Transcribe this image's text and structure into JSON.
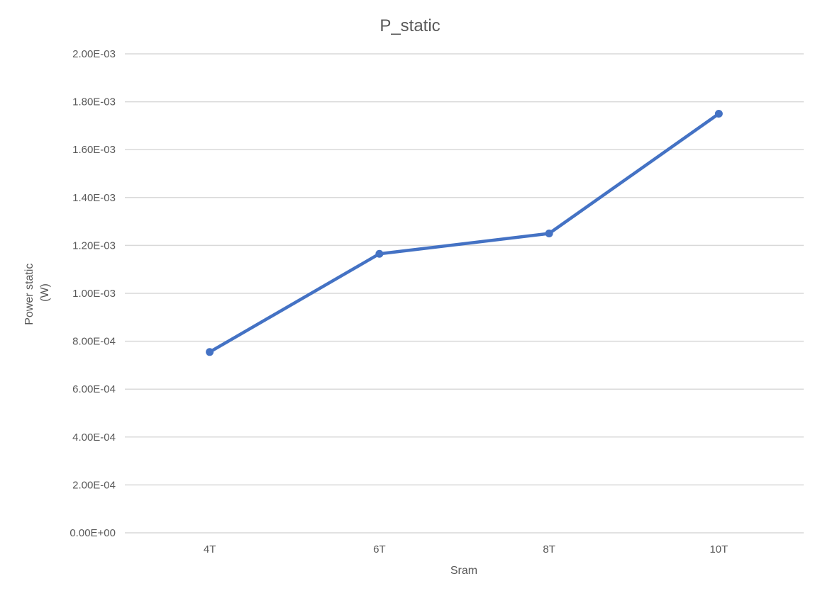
{
  "chart_data": {
    "type": "line",
    "title": "P_static",
    "xlabel": "Sram",
    "ylabel_lines": [
      "Power static",
      "(W)"
    ],
    "categories": [
      "4T",
      "6T",
      "8T",
      "10T"
    ],
    "series": [
      {
        "values": [
          0.000755,
          0.001165,
          0.00125,
          0.00175
        ],
        "color": "#4472C4"
      }
    ],
    "ylim": [
      0,
      0.002
    ],
    "yticks": [
      {
        "value": 0,
        "label": "0.00E+00"
      },
      {
        "value": 0.0002,
        "label": "2.00E-04"
      },
      {
        "value": 0.0004,
        "label": "4.00E-04"
      },
      {
        "value": 0.0006,
        "label": "6.00E-04"
      },
      {
        "value": 0.0008,
        "label": "8.00E-04"
      },
      {
        "value": 0.001,
        "label": "1.00E-03"
      },
      {
        "value": 0.0012,
        "label": "1.20E-03"
      },
      {
        "value": 0.0014,
        "label": "1.40E-03"
      },
      {
        "value": 0.0016,
        "label": "1.60E-03"
      },
      {
        "value": 0.0018,
        "label": "1.80E-03"
      },
      {
        "value": 0.002,
        "label": "2.00E-03"
      }
    ],
    "grid": true,
    "legend": "none"
  }
}
